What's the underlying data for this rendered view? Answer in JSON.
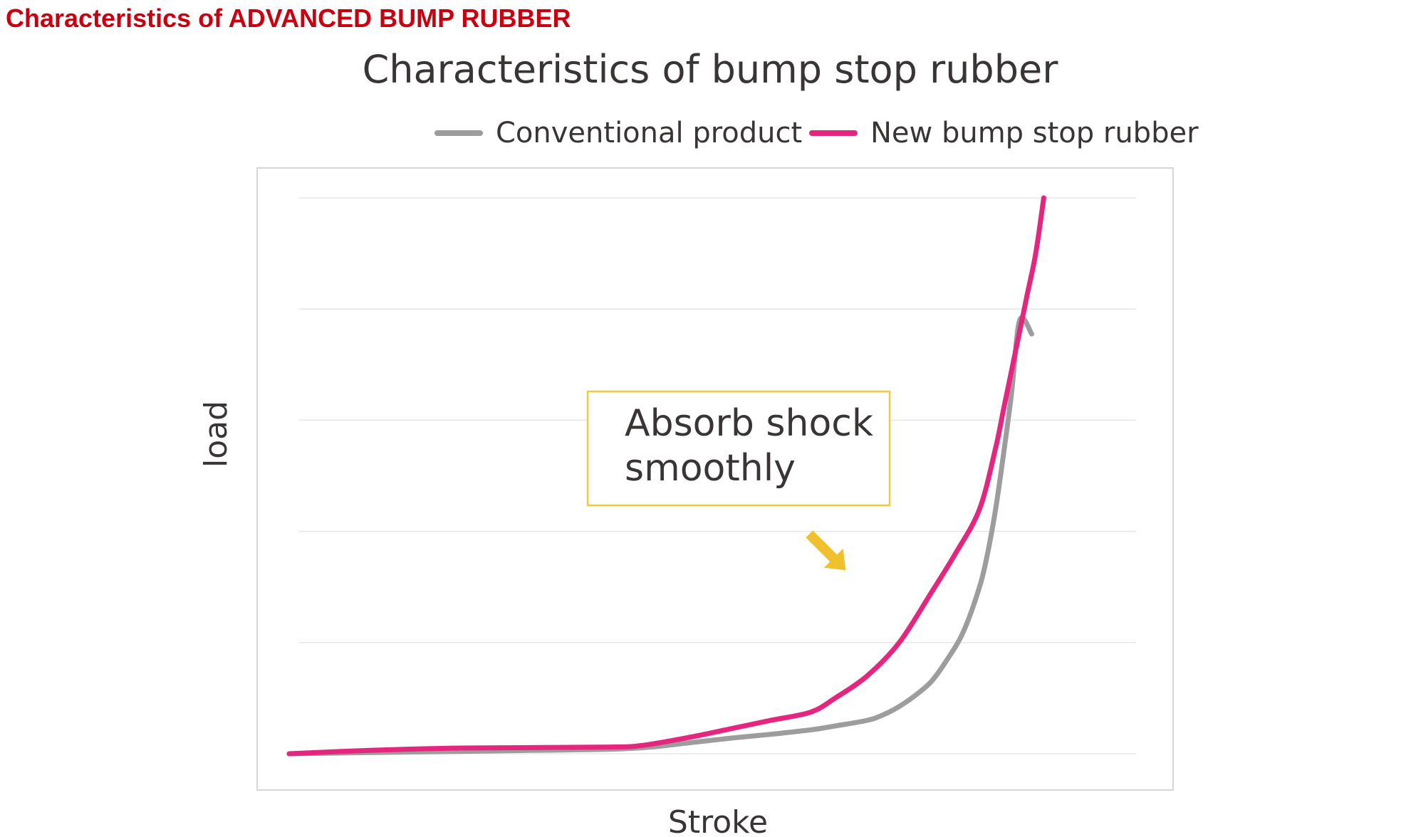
{
  "page": {
    "heading": "Characteristics of ADVANCED BUMP RUBBER"
  },
  "chart_data": {
    "type": "line",
    "title": "Characteristics of bump stop rubber",
    "xlabel": "Stroke",
    "ylabel": "load",
    "xlim": [
      0,
      100
    ],
    "ylim": [
      0,
      100
    ],
    "grid": true,
    "legend_placement": "top-right",
    "series": [
      {
        "name": "Conventional product",
        "color": "#9d9d9d",
        "x": [
          0,
          10,
          20,
          30,
          40,
          45,
          50,
          55,
          60,
          65,
          68,
          72,
          74,
          76,
          78,
          80,
          82,
          84,
          86,
          87,
          88,
          89,
          90,
          91,
          92.5
        ],
        "y": [
          0,
          0.2,
          0.4,
          0.6,
          0.8,
          1.2,
          2,
          2.8,
          3.5,
          4.3,
          5,
          6,
          7,
          8.5,
          10.5,
          13,
          17,
          22,
          30,
          36,
          44,
          54,
          65,
          78,
          75.5
        ]
      },
      {
        "name": "New bump stop rubber",
        "color": "#e5267f",
        "x": [
          0,
          10,
          20,
          30,
          40,
          44,
          50,
          55,
          60,
          65,
          68,
          72,
          76,
          80,
          83,
          86,
          88,
          89,
          90,
          91,
          92,
          93,
          94
        ],
        "y": [
          0,
          0.6,
          1.0,
          1.1,
          1.2,
          1.5,
          3,
          4.5,
          6,
          7.5,
          10,
          14,
          20,
          29,
          36,
          44,
          55,
          62,
          69,
          76,
          83,
          90,
          100
        ]
      }
    ],
    "annotations": [
      {
        "text_lines": [
          "Absorb shock",
          "smoothly"
        ],
        "box_color": "#f4c93a",
        "arrow_color": "#f0c12c"
      }
    ]
  }
}
